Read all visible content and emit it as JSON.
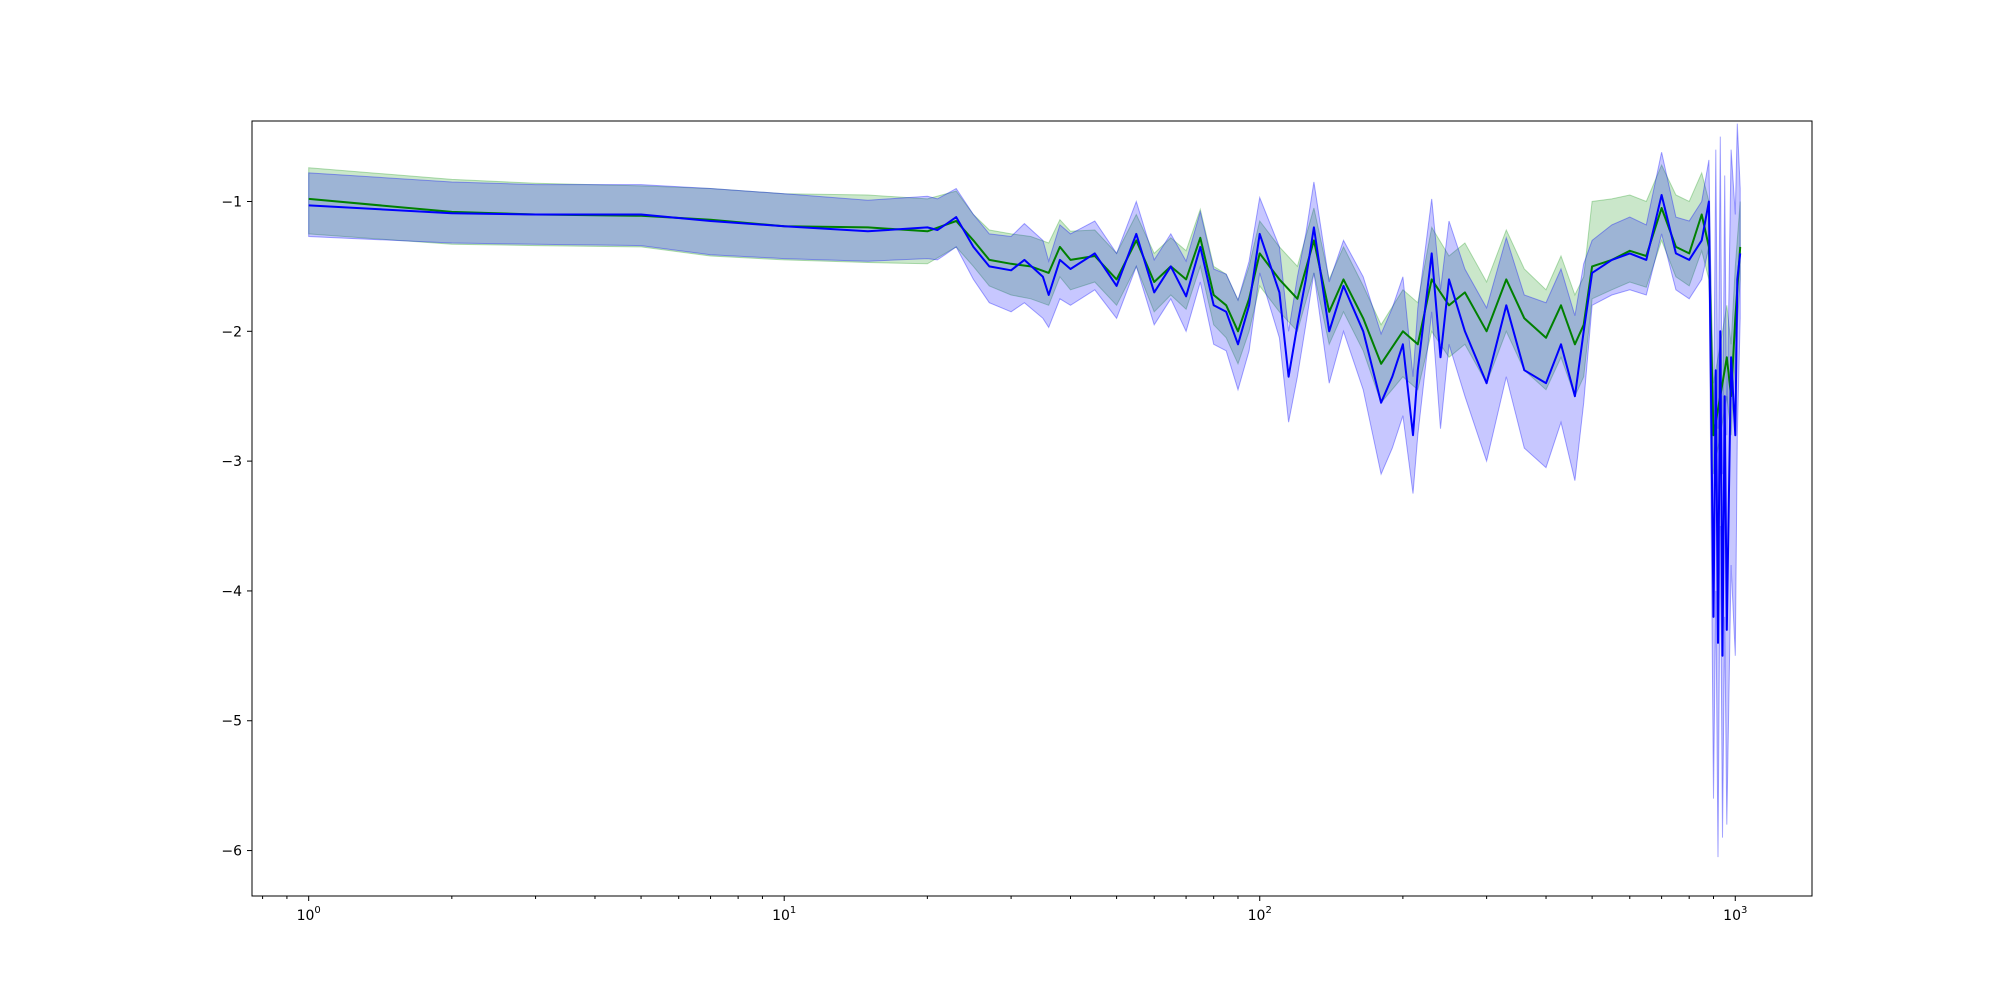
{
  "chart_data": {
    "type": "line",
    "title": "",
    "xlabel": "",
    "ylabel": "",
    "xscale": "log",
    "xlim": [
      0.76,
      1450
    ],
    "ylim": [
      -6.35,
      -0.38
    ],
    "grid": false,
    "legend": "none",
    "x_ticks": [
      {
        "value": 1,
        "base": "10",
        "exp": "0"
      },
      {
        "value": 10,
        "base": "10",
        "exp": "1"
      },
      {
        "value": 100,
        "base": "10",
        "exp": "2"
      },
      {
        "value": 1000,
        "base": "10",
        "exp": "3"
      }
    ],
    "y_ticks": [
      {
        "value": -1,
        "label": "−1"
      },
      {
        "value": -2,
        "label": "−2"
      },
      {
        "value": -3,
        "label": "−3"
      },
      {
        "value": -4,
        "label": "−4"
      },
      {
        "value": -5,
        "label": "−5"
      },
      {
        "value": -6,
        "label": "−6"
      }
    ],
    "series": [
      {
        "color": "#008000",
        "band_color": "#2ca02c",
        "band_opacity": 0.25,
        "x": [
          1,
          2,
          3,
          5,
          7,
          10,
          15,
          20,
          23,
          25,
          27,
          30,
          33,
          36,
          38,
          40,
          45,
          50,
          55,
          60,
          65,
          70,
          75,
          80,
          85,
          90,
          95,
          100,
          110,
          120,
          130,
          140,
          150,
          165,
          180,
          200,
          215,
          230,
          250,
          270,
          300,
          330,
          360,
          400,
          430,
          460,
          480,
          500,
          550,
          600,
          650,
          700,
          750,
          800,
          850,
          880,
          900,
          920,
          940,
          960,
          980,
          1000,
          1024
        ],
        "y": [
          -0.98,
          -1.08,
          -1.1,
          -1.11,
          -1.14,
          -1.19,
          -1.2,
          -1.23,
          -1.15,
          -1.3,
          -1.45,
          -1.48,
          -1.5,
          -1.55,
          -1.35,
          -1.45,
          -1.42,
          -1.6,
          -1.3,
          -1.62,
          -1.5,
          -1.6,
          -1.28,
          -1.72,
          -1.8,
          -2.0,
          -1.75,
          -1.4,
          -1.6,
          -1.75,
          -1.3,
          -1.85,
          -1.6,
          -1.9,
          -2.25,
          -2.0,
          -2.1,
          -1.6,
          -1.8,
          -1.7,
          -2.0,
          -1.6,
          -1.9,
          -2.05,
          -1.8,
          -2.1,
          -1.95,
          -1.5,
          -1.45,
          -1.38,
          -1.42,
          -1.05,
          -1.35,
          -1.4,
          -1.1,
          -1.35,
          -2.8,
          -2.6,
          -2.4,
          -2.2,
          -2.5,
          -1.9,
          -1.35
        ],
        "lower": [
          -1.25,
          -1.33,
          -1.34,
          -1.35,
          -1.42,
          -1.45,
          -1.47,
          -1.48,
          -1.35,
          -1.5,
          -1.65,
          -1.72,
          -1.75,
          -1.8,
          -1.58,
          -1.68,
          -1.62,
          -1.8,
          -1.5,
          -1.85,
          -1.72,
          -1.83,
          -1.5,
          -1.95,
          -2.05,
          -2.25,
          -2.0,
          -1.65,
          -1.85,
          -2.0,
          -1.55,
          -2.1,
          -1.85,
          -2.15,
          -2.55,
          -2.35,
          -2.45,
          -2.0,
          -2.2,
          -2.1,
          -2.4,
          -2.0,
          -2.3,
          -2.45,
          -2.2,
          -2.5,
          -2.35,
          -1.75,
          -1.68,
          -1.62,
          -1.66,
          -1.3,
          -1.58,
          -1.65,
          -1.38,
          -1.6,
          -3.1,
          -2.9,
          -2.7,
          -2.5,
          -2.8,
          -2.2,
          -1.6
        ],
        "upper": [
          -0.74,
          -0.83,
          -0.86,
          -0.88,
          -0.9,
          -0.94,
          -0.95,
          -0.98,
          -0.92,
          -1.1,
          -1.22,
          -1.25,
          -1.27,
          -1.32,
          -1.14,
          -1.23,
          -1.22,
          -1.4,
          -1.1,
          -1.4,
          -1.28,
          -1.38,
          -1.06,
          -1.5,
          -1.56,
          -1.76,
          -1.5,
          -1.15,
          -1.35,
          -1.5,
          -1.05,
          -1.6,
          -1.35,
          -1.65,
          -1.95,
          -1.68,
          -1.78,
          -1.2,
          -1.42,
          -1.32,
          -1.62,
          -1.22,
          -1.52,
          -1.68,
          -1.42,
          -1.72,
          -1.58,
          -1.0,
          -0.98,
          -0.95,
          -1.0,
          -0.72,
          -0.95,
          -1.0,
          -0.78,
          -1.0,
          -2.4,
          -2.2,
          -2.0,
          -1.8,
          -2.1,
          -1.5,
          -1.0
        ]
      },
      {
        "color": "#0000ff",
        "band_color": "#0000ff",
        "band_opacity": 0.22,
        "x": [
          1,
          2,
          3,
          5,
          7,
          10,
          15,
          20,
          21,
          22,
          23,
          25,
          27,
          30,
          32,
          35,
          36,
          38,
          40,
          45,
          50,
          55,
          60,
          65,
          70,
          75,
          80,
          85,
          90,
          95,
          100,
          110,
          115,
          120,
          125,
          130,
          140,
          150,
          165,
          180,
          190,
          200,
          210,
          215,
          230,
          240,
          250,
          270,
          300,
          330,
          360,
          400,
          430,
          460,
          480,
          500,
          550,
          600,
          650,
          700,
          750,
          800,
          850,
          880,
          900,
          910,
          920,
          930,
          940,
          950,
          960,
          980,
          1000,
          1010,
          1024
        ],
        "y": [
          -1.03,
          -1.09,
          -1.1,
          -1.1,
          -1.15,
          -1.19,
          -1.23,
          -1.2,
          -1.22,
          -1.17,
          -1.12,
          -1.35,
          -1.5,
          -1.53,
          -1.45,
          -1.58,
          -1.72,
          -1.45,
          -1.52,
          -1.4,
          -1.65,
          -1.25,
          -1.7,
          -1.5,
          -1.73,
          -1.35,
          -1.8,
          -1.85,
          -2.1,
          -1.8,
          -1.25,
          -1.7,
          -2.35,
          -1.95,
          -1.6,
          -1.2,
          -2.0,
          -1.65,
          -2.0,
          -2.55,
          -2.35,
          -2.1,
          -2.8,
          -2.3,
          -1.4,
          -2.2,
          -1.6,
          -2.0,
          -2.4,
          -1.8,
          -2.3,
          -2.4,
          -2.1,
          -2.5,
          -2.0,
          -1.55,
          -1.45,
          -1.4,
          -1.45,
          -0.95,
          -1.4,
          -1.45,
          -1.3,
          -1.0,
          -4.2,
          -2.3,
          -4.4,
          -2.0,
          -4.5,
          -2.5,
          -4.3,
          -2.2,
          -2.8,
          -1.6,
          -1.4
        ],
        "lower": [
          -1.27,
          -1.32,
          -1.33,
          -1.34,
          -1.41,
          -1.44,
          -1.46,
          -1.44,
          -1.45,
          -1.4,
          -1.35,
          -1.6,
          -1.78,
          -1.85,
          -1.78,
          -1.9,
          -1.97,
          -1.75,
          -1.8,
          -1.68,
          -1.9,
          -1.5,
          -1.95,
          -1.75,
          -2.0,
          -1.62,
          -2.1,
          -2.15,
          -2.45,
          -2.15,
          -1.55,
          -2.05,
          -2.7,
          -2.35,
          -1.95,
          -1.55,
          -2.4,
          -2.0,
          -2.45,
          -3.1,
          -2.9,
          -2.65,
          -3.25,
          -2.8,
          -1.85,
          -2.75,
          -2.1,
          -2.5,
          -3.0,
          -2.35,
          -2.9,
          -3.05,
          -2.7,
          -3.15,
          -2.55,
          -1.8,
          -1.72,
          -1.68,
          -1.72,
          -1.25,
          -1.68,
          -1.75,
          -1.6,
          -1.35,
          -5.6,
          -4.0,
          -6.05,
          -3.5,
          -5.9,
          -4.2,
          -5.8,
          -3.8,
          -4.5,
          -2.8,
          -1.9
        ],
        "upper": [
          -0.78,
          -0.85,
          -0.87,
          -0.87,
          -0.9,
          -0.94,
          -0.99,
          -0.96,
          -0.98,
          -0.94,
          -0.9,
          -1.1,
          -1.25,
          -1.27,
          -1.17,
          -1.3,
          -1.46,
          -1.18,
          -1.25,
          -1.15,
          -1.4,
          -1.0,
          -1.45,
          -1.25,
          -1.46,
          -1.08,
          -1.52,
          -1.56,
          -1.76,
          -1.46,
          -0.97,
          -1.35,
          -2.0,
          -1.58,
          -1.25,
          -0.85,
          -1.62,
          -1.3,
          -1.58,
          -2.02,
          -1.82,
          -1.58,
          -2.35,
          -1.82,
          -0.98,
          -1.68,
          -1.15,
          -1.52,
          -1.82,
          -1.28,
          -1.72,
          -1.78,
          -1.52,
          -1.88,
          -1.48,
          -1.3,
          -1.18,
          -1.12,
          -1.18,
          -0.62,
          -1.12,
          -1.15,
          -1.0,
          -0.68,
          -2.8,
          -0.6,
          -2.75,
          -0.5,
          -3.1,
          -0.8,
          -2.8,
          -0.6,
          -1.1,
          -0.4,
          -0.9
        ]
      }
    ]
  }
}
